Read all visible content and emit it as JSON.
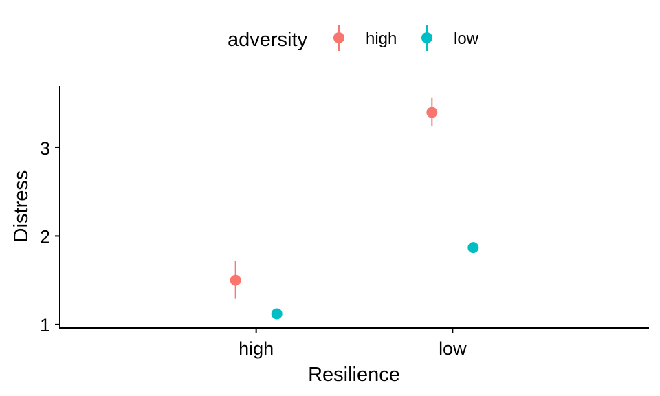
{
  "chart_data": {
    "type": "scatter",
    "title": "",
    "xlabel": "Resilience",
    "ylabel": "Distress",
    "categories": [
      "high",
      "low"
    ],
    "ylim": [
      0.96,
      3.7
    ],
    "yticks": [
      1,
      2,
      3
    ],
    "grid": false,
    "legend": {
      "title": "adversity",
      "placement": "top"
    },
    "series": [
      {
        "name": "high",
        "color": "#F8766D",
        "points": [
          {
            "x": "high",
            "y": 1.5,
            "ymin": 1.29,
            "ymax": 1.72
          },
          {
            "x": "low",
            "y": 3.4,
            "ymin": 3.24,
            "ymax": 3.57
          }
        ]
      },
      {
        "name": "low",
        "color": "#00BFC4",
        "points": [
          {
            "x": "high",
            "y": 1.12,
            "ymin": 1.1,
            "ymax": 1.14
          },
          {
            "x": "low",
            "y": 1.87,
            "ymin": 1.85,
            "ymax": 1.89
          }
        ]
      }
    ]
  }
}
